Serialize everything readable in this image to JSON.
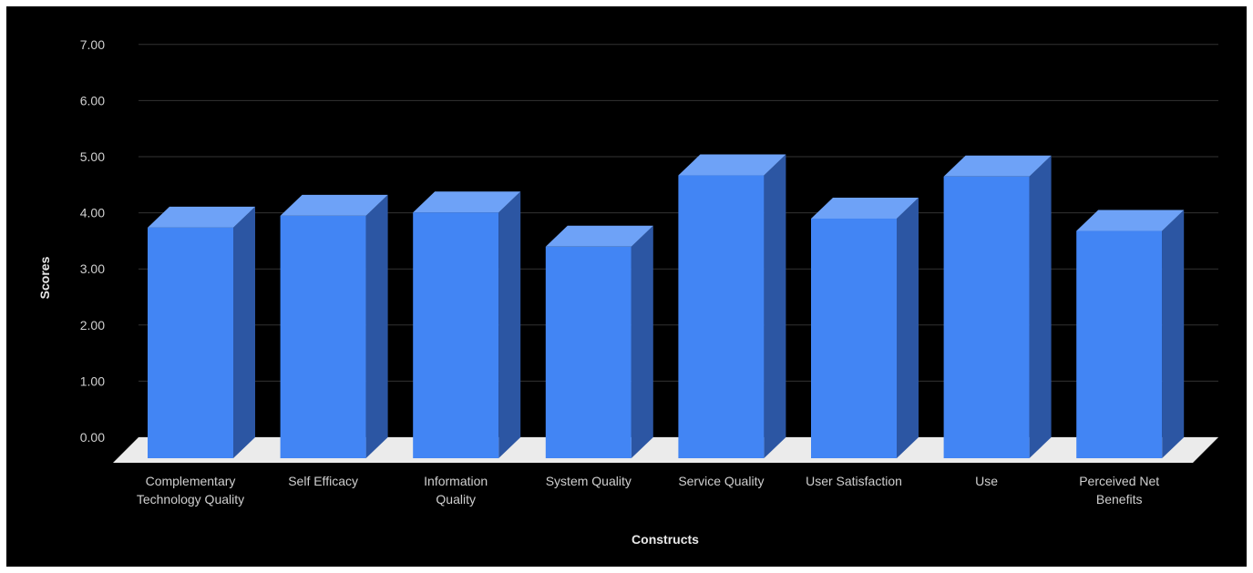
{
  "chart_data": {
    "type": "bar",
    "style": "3d",
    "title": "",
    "xlabel": "Constructs",
    "ylabel": "Scores",
    "ylim": [
      0,
      7
    ],
    "yticks": [
      "0.00",
      "1.00",
      "2.00",
      "3.00",
      "4.00",
      "5.00",
      "6.00",
      "7.00"
    ],
    "grid": true,
    "categories": [
      "Complementary Technology Quality",
      "Self Efficacy",
      "Information Quality",
      "System Quality",
      "Service Quality",
      "User Satisfaction",
      "Use",
      "Perceived Net Benefits"
    ],
    "category_lines": [
      [
        "Complementary",
        "Technology Quality"
      ],
      [
        "Self Efficacy"
      ],
      [
        "Information",
        "Quality"
      ],
      [
        "System Quality"
      ],
      [
        "Service Quality"
      ],
      [
        "User Satisfaction"
      ],
      [
        "Use"
      ],
      [
        "Perceived Net",
        "Benefits"
      ]
    ],
    "values": [
      4.11,
      4.32,
      4.38,
      3.77,
      5.04,
      4.27,
      5.02,
      4.05
    ]
  },
  "colors": {
    "background": "#000000",
    "bar_front": "#4285f4",
    "bar_side": "#2c56a3",
    "bar_top": "#6ea2f7",
    "floor": "#ebebeb",
    "gridline": "#333333"
  }
}
